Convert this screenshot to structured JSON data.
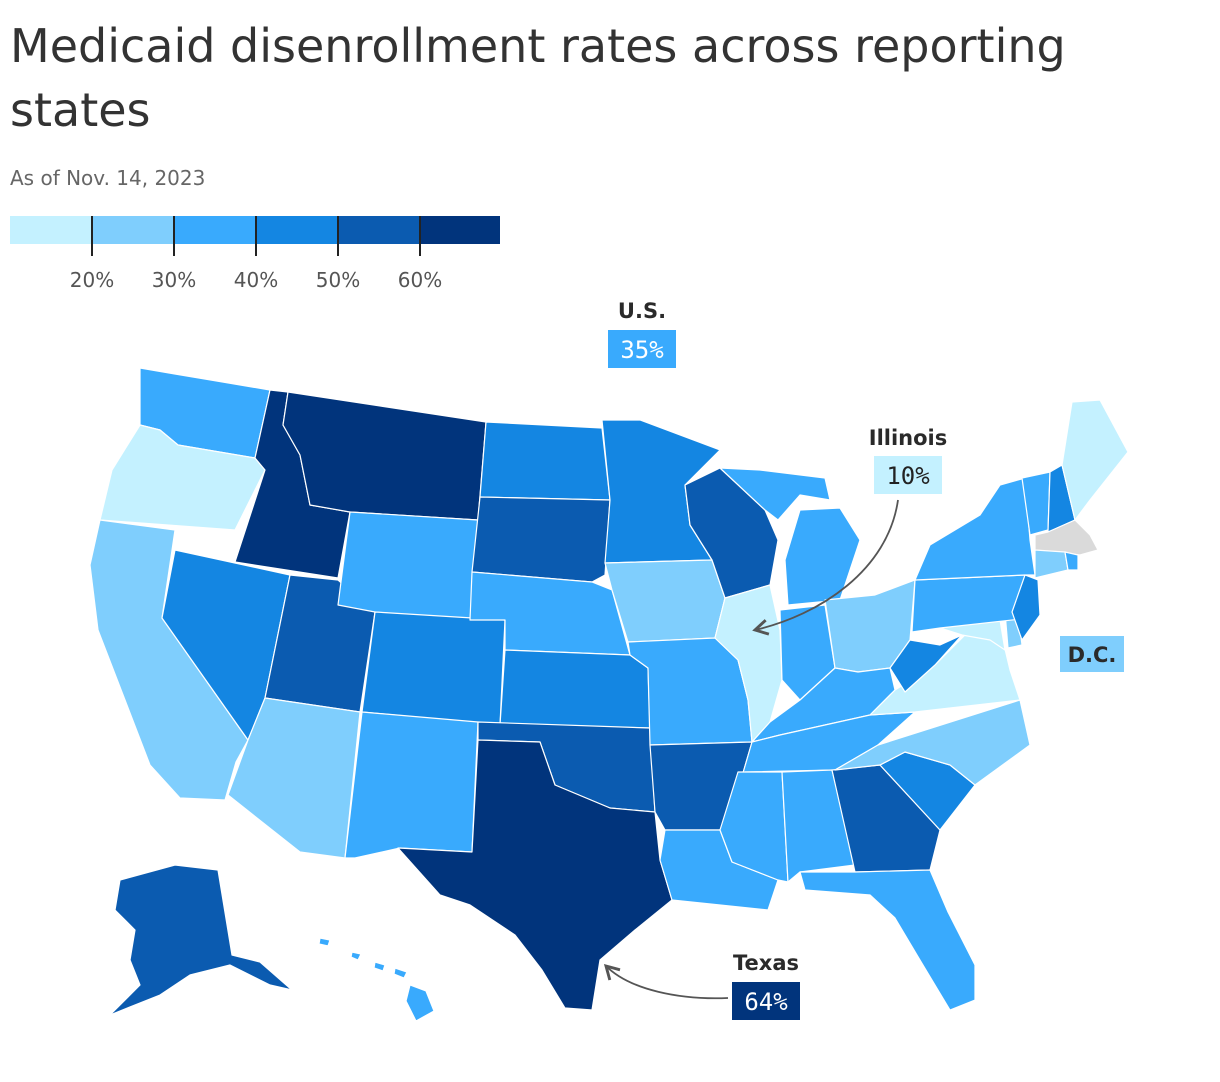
{
  "title": "Medicaid disenrollment rates across reporting states",
  "subtitle": "As of Nov. 14, 2023",
  "colors": {
    "bin0": "#c4f1ff",
    "bin1": "#7fcefd",
    "bin2": "#39aafd",
    "bin3": "#1486e2",
    "bin4": "#0b5bb0",
    "bin5": "#01347c",
    "no_data": "#dadada",
    "border": "#ffffff"
  },
  "legend": {
    "bins": [
      "bin0",
      "bin1",
      "bin2",
      "bin3",
      "bin4",
      "bin5"
    ],
    "tick_labels": [
      "20%",
      "30%",
      "40%",
      "50%",
      "60%"
    ]
  },
  "callouts": {
    "us": {
      "name": "U.S.",
      "value": "35%",
      "bin": "bin2"
    },
    "illinois": {
      "name": "Illinois",
      "value": "10%",
      "bin": "bin0"
    },
    "texas": {
      "name": "Texas",
      "value": "64%",
      "bin": "bin5"
    },
    "dc": {
      "name": "D.C.",
      "bin": "bin1"
    }
  },
  "states": {
    "WA": "bin2",
    "OR": "bin0",
    "CA": "bin1",
    "ID": "bin5",
    "MT": "bin5",
    "NV": "bin3",
    "UT": "bin4",
    "AZ": "bin1",
    "WY": "bin2",
    "CO": "bin3",
    "NM": "bin2",
    "ND": "bin3",
    "SD": "bin4",
    "NE": "bin2",
    "KS": "bin3",
    "OK": "bin4",
    "TX": "bin5",
    "MN": "bin3",
    "IA": "bin1",
    "MO": "bin2",
    "AR": "bin4",
    "LA": "bin2",
    "WI": "bin4",
    "IL": "bin0",
    "MI": "bin2",
    "IN": "bin2",
    "OH": "bin1",
    "KY": "bin2",
    "TN": "bin2",
    "MS": "bin2",
    "AL": "bin2",
    "GA": "bin4",
    "FL": "bin2",
    "SC": "bin3",
    "NC": "bin1",
    "VA": "bin0",
    "WV": "bin3",
    "PA": "bin2",
    "NY": "bin2",
    "MD": "bin0",
    "DE": "bin1",
    "NJ": "bin3",
    "CT": "bin1",
    "RI": "bin2",
    "MA": "no_data",
    "VT": "bin2",
    "NH": "bin3",
    "ME": "bin0",
    "AK": "bin4",
    "HI": "bin2"
  }
}
